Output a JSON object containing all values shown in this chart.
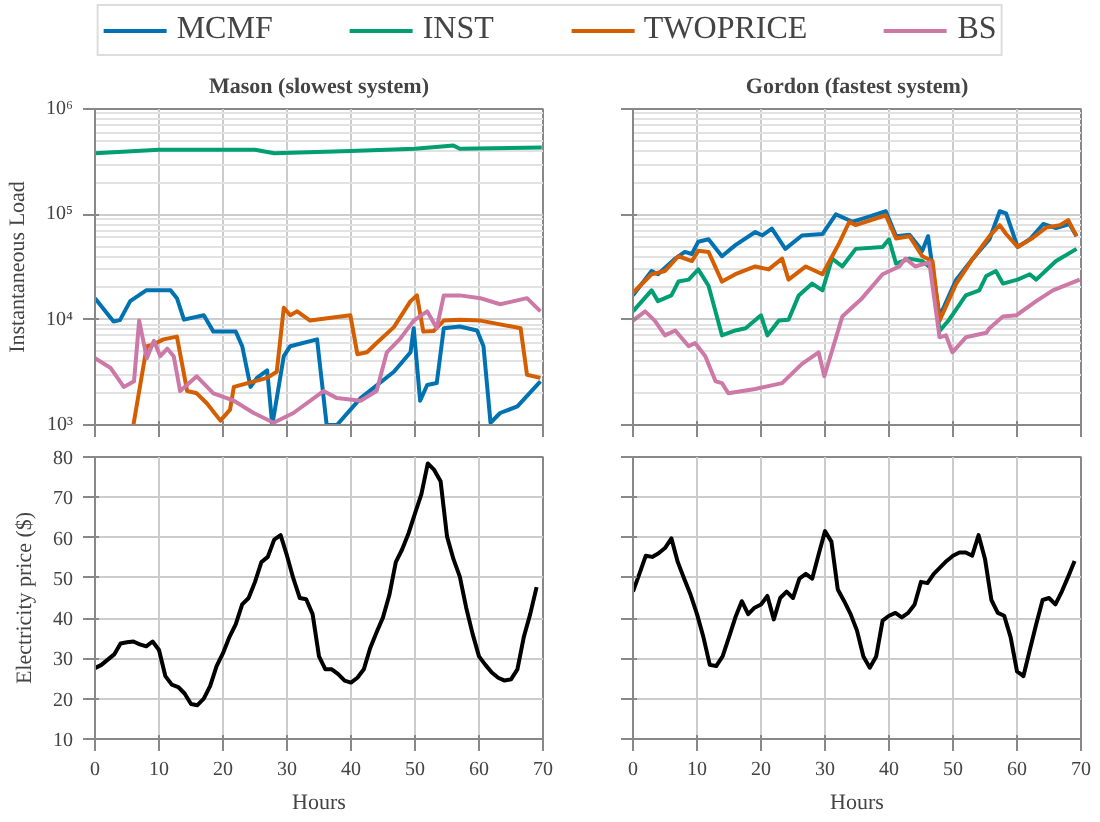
{
  "chart_data": [
    {
      "type": "line",
      "title": "Mason (slowest system)",
      "ylabel": "Instantaneous Load",
      "log": "y",
      "xlim": [
        0,
        70
      ],
      "xticks": [
        0,
        10,
        20,
        30,
        40,
        50,
        60,
        70
      ],
      "ylim": [
        1000,
        1000000
      ],
      "yticks": [
        {
          "value": 1000,
          "label": "10³"
        },
        {
          "value": 10000,
          "label": "10⁴"
        },
        {
          "value": 100000,
          "label": "10⁵"
        },
        {
          "value": 1000000,
          "label": "10⁶"
        }
      ],
      "grid": true,
      "legend": "top",
      "tick_labels": "y",
      "series": [
        {
          "name": "MCMF",
          "color": "#0072b2",
          "x": [
            0,
            2.9,
            3.9,
            5.5,
            8,
            11.8,
            12.8,
            13.9,
            17,
            18.5,
            22,
            23,
            24.3,
            25.3,
            26.9,
            27.7,
            29.5,
            30.5,
            34.7,
            36.2,
            37.8,
            41.5,
            46.7,
            49.3,
            49.8,
            50.8,
            51.9,
            53.4,
            54.5,
            57,
            59.7,
            60.7,
            61.8,
            63.3,
            66,
            69.6
          ],
          "values": [
            16000,
            9600,
            9900,
            15000,
            19000,
            19000,
            16000,
            10000,
            11000,
            7700,
            7700,
            5600,
            2300,
            2800,
            3300,
            1000,
            4500,
            5600,
            6500,
            1000,
            1000,
            1800,
            3200,
            4900,
            8300,
            1700,
            2400,
            2500,
            8300,
            8600,
            7900,
            5600,
            1050,
            1300,
            1500,
            2600
          ]
        },
        {
          "name": "INST",
          "color": "#009e73",
          "x": [
            0,
            10,
            25,
            28,
            40,
            50,
            56,
            57,
            69.8
          ],
          "values": [
            380000,
            410000,
            410000,
            380000,
            400000,
            420000,
            450000,
            420000,
            430000
          ]
        },
        {
          "name": "TWOPRICE",
          "color": "#d55e00",
          "x": [
            6,
            8.1,
            9.1,
            10.7,
            12.8,
            14.4,
            15.9,
            17.5,
            19.6,
            21.1,
            21.7,
            26.9,
            28.4,
            29.5,
            30.5,
            31.6,
            33.6,
            39.9,
            41,
            42.5,
            44,
            46.7,
            49.3,
            50.3,
            51.3,
            52.9,
            54.5,
            57,
            60.2,
            66.5,
            67.5,
            69.6
          ],
          "values": [
            1000,
            5600,
            5800,
            6500,
            6900,
            2100,
            2000,
            1600,
            1100,
            1400,
            2300,
            2800,
            3200,
            13000,
            11000,
            12000,
            9800,
            11000,
            4700,
            4900,
            6000,
            8500,
            15000,
            17000,
            7700,
            7800,
            9800,
            10000,
            9800,
            8300,
            3000,
            2800
          ]
        },
        {
          "name": "BS",
          "color": "#cc79a7",
          "x": [
            0,
            2.4,
            4.5,
            6.1,
            6.9,
            8.1,
            9.2,
            10.2,
            11.3,
            12.3,
            13.3,
            15.9,
            18.5,
            21.7,
            24.8,
            27.9,
            31,
            35.7,
            37.8,
            41.5,
            44,
            45.6,
            47.7,
            49.8,
            51.9,
            53.4,
            54.5,
            57,
            60.2,
            63.3,
            67.5,
            69.6
          ],
          "values": [
            4300,
            3500,
            2300,
            2600,
            9800,
            4300,
            6300,
            4500,
            5300,
            4500,
            2100,
            2900,
            2000,
            1700,
            1300,
            1050,
            1300,
            2100,
            1800,
            1700,
            2100,
            4900,
            6600,
            9800,
            12000,
            8300,
            17000,
            17000,
            16000,
            14000,
            16000,
            12000
          ]
        }
      ]
    },
    {
      "type": "line",
      "title": "Gordon (fastest system)",
      "log": "y",
      "xlim": [
        0,
        70
      ],
      "xticks": [
        0,
        10,
        20,
        30,
        40,
        50,
        60,
        70
      ],
      "ylim": [
        1000,
        1000000
      ],
      "yticks": [
        {
          "value": 1000,
          "label": null
        },
        {
          "value": 10000,
          "label": null
        },
        {
          "value": 100000,
          "label": null
        },
        {
          "value": 1000000,
          "label": null
        }
      ],
      "grid": true,
      "tick_labels": false,
      "series": [
        {
          "color": "#0072b2",
          "x": [
            0,
            2.9,
            3.9,
            6.6,
            8.1,
            9.2,
            10.2,
            11.8,
            13.9,
            16,
            19.1,
            20.2,
            21.7,
            23.8,
            26.4,
            29.6,
            31.7,
            34.3,
            36.4,
            39.5,
            41.1,
            43.2,
            45.2,
            46.1,
            47.9,
            50.5,
            53.1,
            55.7,
            57.3,
            58.3,
            60.1,
            62,
            64.1,
            66.1,
            68.2,
            69.3
          ],
          "values": [
            17000,
            29000,
            27000,
            38000,
            44000,
            42000,
            55000,
            58000,
            40000,
            51000,
            68000,
            63000,
            73000,
            47000,
            63000,
            65000,
            100000,
            85000,
            93000,
            107000,
            62000,
            64000,
            45000,
            62000,
            10700,
            24000,
            38000,
            58000,
            107000,
            102000,
            49000,
            58000,
            81000,
            74000,
            81000,
            62000
          ]
        },
        {
          "color": "#009e73",
          "x": [
            0,
            2.9,
            3.9,
            6,
            7.1,
            8.7,
            10.2,
            11.8,
            13.9,
            16,
            17.6,
            20,
            21,
            22.8,
            24.3,
            25.9,
            28,
            29.6,
            31.1,
            32.7,
            34.8,
            39,
            40,
            41.1,
            43.2,
            45.2,
            46.8,
            47.9,
            49.4,
            52,
            54.1,
            55.2,
            56.7,
            57.8,
            60.1,
            62,
            63,
            66.1,
            69.3
          ],
          "values": [
            12000,
            19000,
            15000,
            17000,
            23000,
            24000,
            30000,
            21000,
            7100,
            7900,
            8300,
            11000,
            7100,
            9800,
            10000,
            17000,
            22000,
            19000,
            38000,
            32000,
            47000,
            49000,
            58000,
            34000,
            38000,
            36000,
            30000,
            7800,
            10000,
            17000,
            19000,
            26000,
            29000,
            22000,
            24000,
            27000,
            24000,
            36000,
            47000
          ]
        },
        {
          "color": "#d55e00",
          "x": [
            0,
            2.9,
            5,
            7.1,
            9.2,
            10.2,
            11.8,
            13.9,
            16,
            19.1,
            21.2,
            23.3,
            24.3,
            27,
            29.6,
            32.2,
            33.8,
            34.8,
            39.5,
            41.1,
            43.2,
            45.2,
            46.8,
            47.9,
            50.5,
            53.1,
            55.7,
            57.3,
            58.3,
            60.1,
            62.5,
            64.6,
            66.7,
            68,
            69.3
          ],
          "values": [
            18000,
            27000,
            29000,
            40000,
            36000,
            45000,
            44000,
            23000,
            27000,
            32000,
            30000,
            38000,
            24000,
            32000,
            27000,
            53000,
            85000,
            79000,
            98000,
            59000,
            62000,
            40000,
            36000,
            9800,
            22000,
            38000,
            62000,
            79000,
            65000,
            49000,
            60000,
            75000,
            79000,
            88000,
            62000
          ]
        },
        {
          "color": "#cc79a7",
          "x": [
            0,
            1.9,
            3.4,
            5,
            6.6,
            8.7,
            9.7,
            11.3,
            12.9,
            13.9,
            14.9,
            19.1,
            23.3,
            26.4,
            29,
            29.9,
            32.7,
            35.8,
            39,
            41.6,
            42.6,
            44.1,
            46.3,
            47.9,
            48.9,
            49.9,
            52,
            55.2,
            55.7,
            57.8,
            59.9,
            63,
            65.6,
            69.8
          ],
          "values": [
            9800,
            12000,
            9800,
            7100,
            7900,
            5600,
            6000,
            4500,
            2600,
            2500,
            2000,
            2200,
            2500,
            3800,
            4900,
            2900,
            10700,
            16000,
            27000,
            32000,
            38000,
            32000,
            35000,
            6800,
            7100,
            4900,
            6800,
            7500,
            8300,
            10700,
            11000,
            15000,
            19000,
            24000
          ]
        }
      ]
    },
    {
      "type": "line",
      "xlabel": "Hours",
      "ylabel": "Electricity price ($)",
      "xlim": [
        0,
        70
      ],
      "xticks": [
        0,
        10,
        20,
        30,
        40,
        50,
        60,
        70
      ],
      "ylim": [
        10,
        80
      ],
      "yticks": [
        10,
        20,
        30,
        40,
        50,
        60,
        70,
        80
      ],
      "grid": true,
      "color": "#000000",
      "x": [
        0,
        1,
        2,
        3,
        4,
        5,
        6,
        7,
        8,
        9,
        10,
        11,
        12,
        13,
        14,
        15,
        16,
        17,
        18,
        19,
        20,
        21,
        22,
        23,
        24,
        25,
        26,
        27,
        28,
        29,
        30,
        31,
        32,
        33,
        34,
        35,
        36,
        37,
        38,
        39,
        40,
        41,
        42,
        43,
        44,
        45,
        46,
        47,
        48,
        49,
        50,
        51,
        52,
        53,
        54,
        55,
        56,
        57,
        58,
        59,
        60,
        61,
        62,
        63,
        64,
        65,
        66,
        67,
        68,
        69
      ],
      "values": [
        27.6,
        28.4,
        29.7,
        31,
        33.7,
        34,
        34.2,
        33.5,
        33,
        34.2,
        32.1,
        25.6,
        23.5,
        22.9,
        21.3,
        18.7,
        18.4,
        20,
        23.2,
        28.1,
        31.3,
        35.3,
        38.5,
        43.4,
        45,
        49,
        53.9,
        55.2,
        59.5,
        60.6,
        55.5,
        49.8,
        45,
        44.7,
        41,
        30.5,
        27.3,
        27.3,
        26.1,
        24.5,
        24,
        25.2,
        27.3,
        32.6,
        36.5,
        40.2,
        45.8,
        53.9,
        57.1,
        61.1,
        66,
        70.8,
        78.4,
        76.8,
        74,
        60.3,
        54.7,
        50.3,
        42.6,
        36.1,
        30.5,
        28.4,
        26.5,
        25.2,
        24.5,
        24.8,
        27.3,
        35.3,
        41,
        47.7
      ]
    },
    {
      "type": "line",
      "xlabel": "Hours",
      "xlim": [
        0,
        70
      ],
      "xticks": [
        0,
        10,
        20,
        30,
        40,
        50,
        60,
        70
      ],
      "ylim": [
        10,
        80
      ],
      "yticks": [
        10,
        20,
        30,
        40,
        50,
        60,
        70,
        80
      ],
      "grid": true,
      "tick_labels": "x",
      "color": "#000000",
      "x": [
        0,
        1,
        2,
        3,
        4,
        5,
        6,
        7,
        8,
        9,
        10,
        11,
        12,
        13,
        14,
        15,
        16,
        17,
        18,
        19,
        20,
        21,
        22,
        23,
        24,
        25,
        26,
        27,
        28,
        29,
        30,
        31,
        32,
        33,
        34,
        35,
        36,
        37,
        38,
        39,
        40,
        41,
        42,
        43,
        44,
        45,
        46,
        47,
        48,
        49,
        50,
        51,
        52,
        53,
        54,
        55,
        56,
        57,
        58,
        59,
        60,
        61,
        62,
        63,
        64,
        65,
        66,
        67,
        68,
        69
      ],
      "values": [
        46.6,
        51,
        55.5,
        55.2,
        56.1,
        57.4,
        59.8,
        53.9,
        49.8,
        45.8,
        41,
        35.3,
        28.4,
        28.1,
        30.5,
        35.3,
        40.2,
        44.2,
        41,
        42.6,
        43.4,
        45.5,
        39.7,
        45,
        46.6,
        45,
        49.8,
        51,
        49.8,
        55.8,
        61.6,
        59,
        47.1,
        44.2,
        41,
        36.9,
        30.5,
        27.7,
        30.5,
        39.4,
        40.6,
        41.3,
        40.2,
        41.3,
        43.4,
        49,
        48.7,
        51,
        52.6,
        54.2,
        55.5,
        56.3,
        56.3,
        55.5,
        60.6,
        54.7,
        44.5,
        41.3,
        40.6,
        35.3,
        26.8,
        25.6,
        32.1,
        38.5,
        44.5,
        45,
        43.4,
        46.6,
        50.3,
        54.2
      ]
    }
  ]
}
